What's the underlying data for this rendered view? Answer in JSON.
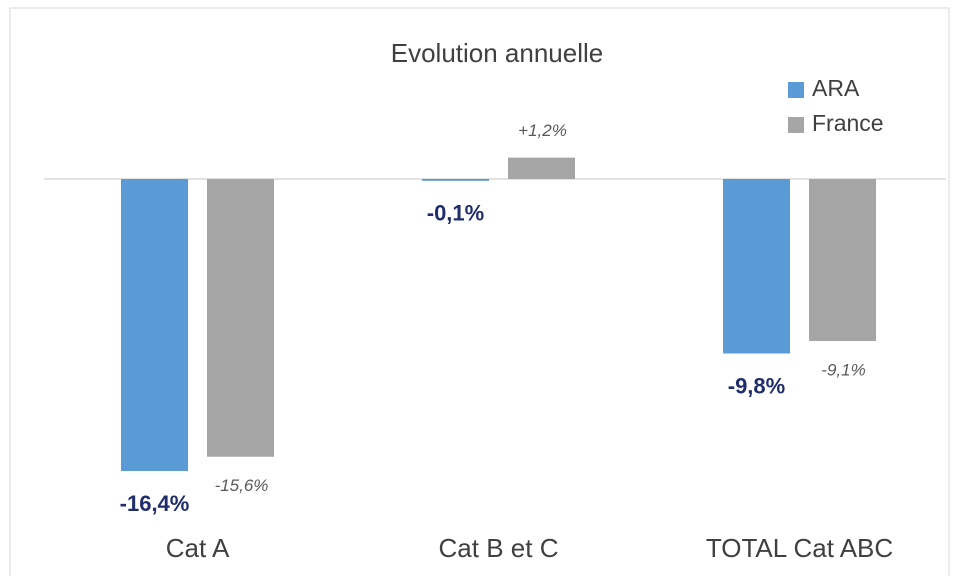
{
  "chart_data": {
    "type": "bar",
    "title": "Evolution annuelle",
    "categories": [
      "Cat A",
      "Cat B et C",
      "TOTAL Cat ABC"
    ],
    "series": [
      {
        "name": "ARA",
        "color": "#5b9bd5",
        "values": [
          -16.4,
          -0.1,
          -9.8
        ],
        "value_labels": [
          "-16,4%",
          "-0,1%",
          "-9,8%"
        ]
      },
      {
        "name": "France",
        "color": "#a5a5a5",
        "values": [
          -15.6,
          1.2,
          -9.1
        ],
        "value_labels": [
          "-15,6%",
          "+1,2%",
          "-9,1%"
        ]
      }
    ],
    "legend": "upper right"
  }
}
